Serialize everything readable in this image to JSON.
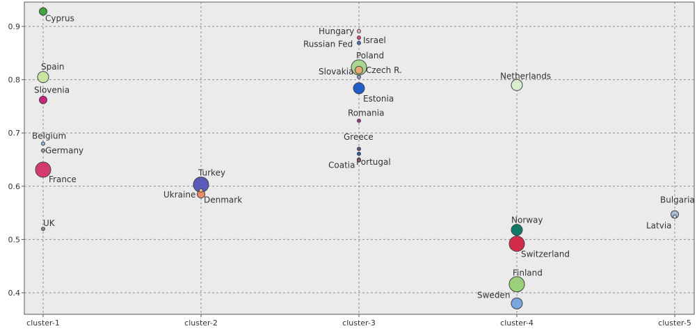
{
  "chart_data": {
    "type": "scatter",
    "title": "",
    "xlabel": "",
    "ylabel": "",
    "categories": [
      "cluster-1",
      "cluster-2",
      "cluster-3",
      "cluster-4",
      "cluster-5"
    ],
    "y_ticks": [
      0.4,
      0.5,
      0.6,
      0.7,
      0.8,
      0.9
    ],
    "ylim": [
      0.37,
      0.95
    ],
    "grid": true,
    "colors": {
      "plot_bg": "#ebebeb",
      "grid": "#8c8c8c",
      "axis": "#555555"
    },
    "points": [
      {
        "label": "Cyprus",
        "x": "cluster-1",
        "y": 0.928,
        "size": "small",
        "color": "#3aa63a"
      },
      {
        "label": "Spain",
        "x": "cluster-1",
        "y": 0.805,
        "size": "medium",
        "color": "#c9e6a0"
      },
      {
        "label": "Slovenia",
        "x": "cluster-1",
        "y": 0.762,
        "size": "small",
        "color": "#c8247e"
      },
      {
        "label": "Belgium",
        "x": "cluster-1",
        "y": 0.68,
        "size": "tiny",
        "color": "#9cb4d8"
      },
      {
        "label": "Germany",
        "x": "cluster-1",
        "y": 0.667,
        "size": "tiny",
        "color": "#a0a0a0"
      },
      {
        "label": "France",
        "x": "cluster-1",
        "y": 0.631,
        "size": "large",
        "color": "#d33a6e"
      },
      {
        "label": "UK",
        "x": "cluster-1",
        "y": 0.52,
        "size": "tiny",
        "color": "#888888"
      },
      {
        "label": "Turkey",
        "x": "cluster-2",
        "y": 0.603,
        "size": "large",
        "color": "#5a5ab8"
      },
      {
        "label": "Ukraine",
        "x": "cluster-2",
        "y": 0.592,
        "size": "tiny",
        "color": "#e8c090"
      },
      {
        "label": "Denmark",
        "x": "cluster-2",
        "y": 0.585,
        "size": "small",
        "color": "#f08a6c"
      },
      {
        "label": "Hungary",
        "x": "cluster-3",
        "y": 0.891,
        "size": "tiny",
        "color": "#f0b0d8"
      },
      {
        "label": "Israel",
        "x": "cluster-3",
        "y": 0.879,
        "size": "tiny",
        "color": "#e0408a"
      },
      {
        "label": "Russian Fed",
        "x": "cluster-3",
        "y": 0.869,
        "size": "tiny",
        "color": "#3c78c8"
      },
      {
        "label": "Poland",
        "x": "cluster-3",
        "y": 0.823,
        "size": "large",
        "color": "#a8d890"
      },
      {
        "label": "Czech R.",
        "x": "cluster-3",
        "y": 0.818,
        "size": "small",
        "color": "#e8a870"
      },
      {
        "label": "Slovakia",
        "x": "cluster-3",
        "y": 0.805,
        "size": "tiny",
        "color": "#8aa0c8"
      },
      {
        "label": "Estonia",
        "x": "cluster-3",
        "y": 0.784,
        "size": "medium",
        "color": "#1f5fc8"
      },
      {
        "label": "Romania",
        "x": "cluster-3",
        "y": 0.723,
        "size": "tiny",
        "color": "#a83080"
      },
      {
        "label": "Greece",
        "x": "cluster-3",
        "y": 0.67,
        "size": "tiny",
        "color": "#555577"
      },
      {
        "label": "Portugal",
        "x": "cluster-3",
        "y": 0.661,
        "size": "tiny",
        "color": "#1f5fa0"
      },
      {
        "label": "Coatia",
        "x": "cluster-3",
        "y": 0.65,
        "size": "tiny",
        "color": "#c07080"
      },
      {
        "label": "Netherlands",
        "x": "cluster-4",
        "y": 0.79,
        "size": "medium",
        "color": "#d8eed0"
      },
      {
        "label": "Norway",
        "x": "cluster-4",
        "y": 0.518,
        "size": "medium",
        "color": "#0f7a6a"
      },
      {
        "label": "Switzerland",
        "x": "cluster-4",
        "y": 0.492,
        "size": "large",
        "color": "#d42a4a"
      },
      {
        "label": "Finland",
        "x": "cluster-4",
        "y": 0.416,
        "size": "large",
        "color": "#9ad07a"
      },
      {
        "label": "Sweden",
        "x": "cluster-4",
        "y": 0.38,
        "size": "medium",
        "color": "#7aa4dc"
      },
      {
        "label": "Bulgaria",
        "x": "cluster-5",
        "y": 0.547,
        "size": "small",
        "color": "#aabedc"
      },
      {
        "label": "Latvia",
        "x": "cluster-5",
        "y": 0.543,
        "size": "tiny",
        "color": "#c8d8e8"
      }
    ]
  }
}
